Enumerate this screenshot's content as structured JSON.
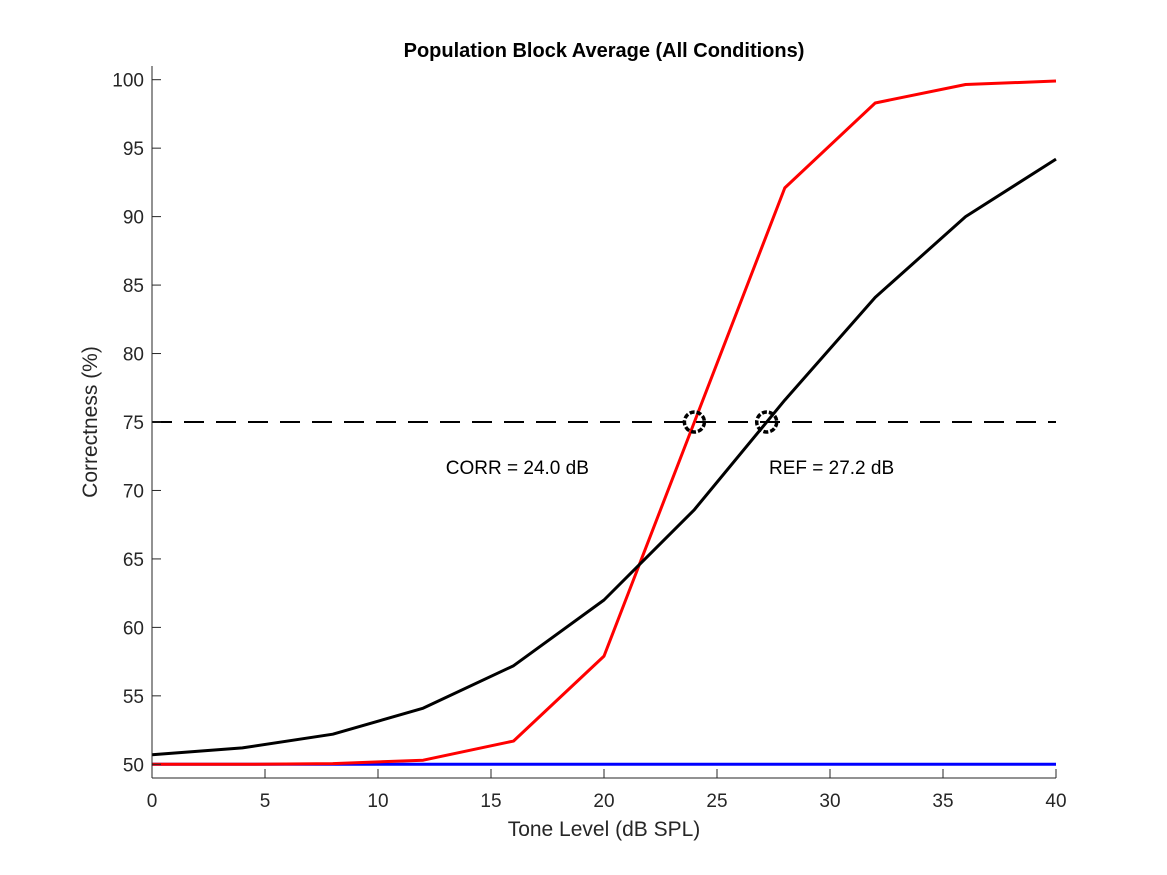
{
  "chart_data": {
    "type": "line",
    "title": "Population Block Average (All Conditions)",
    "xlabel": "Tone Level (dB SPL)",
    "ylabel": "Correctness (%)",
    "xlim": [
      0,
      40
    ],
    "ylim": [
      49,
      101
    ],
    "xticks": [
      0,
      5,
      10,
      15,
      20,
      25,
      30,
      35,
      40
    ],
    "yticks": [
      50,
      55,
      60,
      65,
      70,
      75,
      80,
      85,
      90,
      95,
      100
    ],
    "grid": false,
    "series": [
      {
        "color": "#ff0000",
        "x": [
          0,
          4,
          8,
          12,
          16,
          20,
          24,
          28,
          32,
          36,
          40
        ],
        "y": [
          50.0,
          50.0,
          50.05,
          50.3,
          51.7,
          57.9,
          75.0,
          92.1,
          98.3,
          99.65,
          99.9
        ]
      },
      {
        "color": "#000000",
        "x": [
          0,
          4,
          8,
          12,
          16,
          20,
          24,
          28,
          32,
          36,
          40
        ],
        "y": [
          50.7,
          51.2,
          52.2,
          54.1,
          57.2,
          62.0,
          68.6,
          76.6,
          84.1,
          90.0,
          94.2
        ]
      },
      {
        "color": "#0000ff",
        "x": [
          0,
          40
        ],
        "y": [
          50.0,
          50.0
        ]
      }
    ],
    "reference_line": {
      "y": 75,
      "style": "dashed",
      "color": "#000000"
    },
    "markers": [
      {
        "x": 24.0,
        "y": 75
      },
      {
        "x": 27.2,
        "y": 75
      }
    ],
    "annotations": [
      {
        "text": "CORR = 24.0 dB",
        "x": 13.0,
        "y": 71.2
      },
      {
        "text": "REF = 27.2 dB",
        "x": 27.3,
        "y": 71.2
      }
    ]
  }
}
